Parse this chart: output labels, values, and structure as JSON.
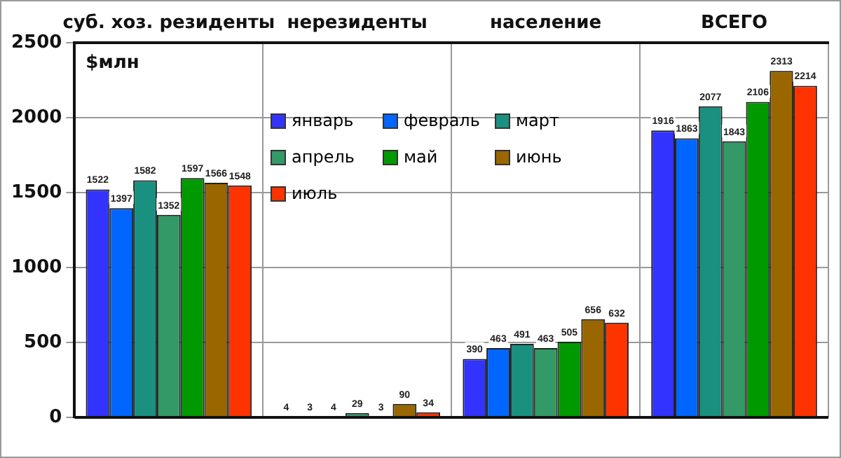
{
  "chart_data": {
    "type": "bar",
    "ylabel": "$млн",
    "categories": [
      "суб. хоз. резиденты",
      "нерезиденты",
      "население",
      "ВСЕГО"
    ],
    "series": [
      {
        "name": "январь",
        "color": "#3333ff",
        "values": [
          1522,
          4,
          390,
          1916
        ]
      },
      {
        "name": "февраль",
        "color": "#0066ff",
        "values": [
          1397,
          3,
          463,
          1863
        ]
      },
      {
        "name": "март",
        "color": "#1a9080",
        "values": [
          1582,
          4,
          491,
          2077
        ]
      },
      {
        "name": "апрель",
        "color": "#339966",
        "values": [
          1352,
          29,
          463,
          1843
        ]
      },
      {
        "name": "май",
        "color": "#009900",
        "values": [
          1597,
          3,
          505,
          2106
        ]
      },
      {
        "name": "июнь",
        "color": "#996600",
        "values": [
          1566,
          90,
          656,
          2313
        ]
      },
      {
        "name": "июль",
        "color": "#ff3300",
        "values": [
          1548,
          34,
          632,
          2214
        ]
      }
    ],
    "ylim": [
      0,
      2500
    ],
    "yticks": [
      0,
      500,
      1000,
      1500,
      2000,
      2500
    ],
    "grid": true,
    "legend": "top",
    "data_labels": true
  }
}
